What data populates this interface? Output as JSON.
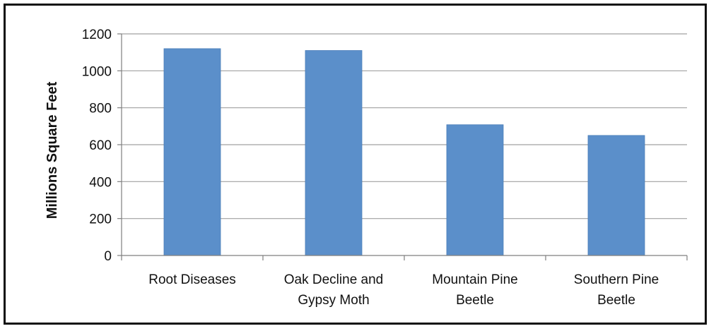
{
  "chart_data": {
    "type": "bar",
    "title": "",
    "xlabel": "",
    "ylabel": "Millions Square Feet",
    "categories": [
      [
        "Root Diseases"
      ],
      [
        "Oak Decline and",
        "Gypsy Moth"
      ],
      [
        "Mountain Pine",
        "Beetle"
      ],
      [
        "Southern Pine",
        "Beetle"
      ]
    ],
    "values": [
      1120,
      1110,
      708,
      650
    ],
    "ylim": [
      0,
      1200
    ],
    "yticks": [
      0,
      200,
      400,
      600,
      800,
      1000,
      1200
    ],
    "grid": true,
    "legend": "none",
    "colors": {
      "bar": "#5b8fca",
      "bar_edge": "#4a7db8",
      "grid": "#a0a0a0",
      "axis": "#7f7f7f",
      "text": "#111111"
    }
  }
}
